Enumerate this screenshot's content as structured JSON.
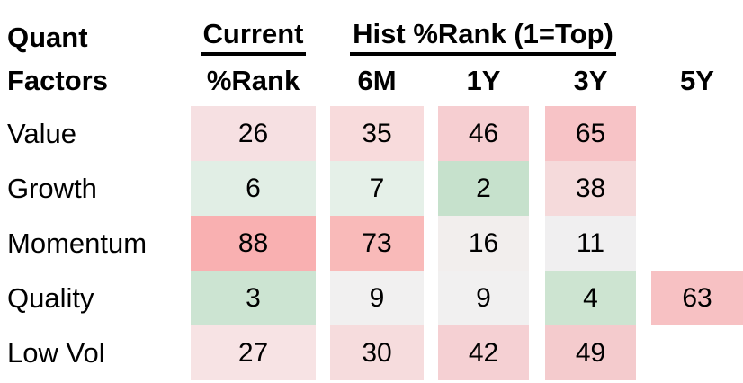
{
  "headers": {
    "corner_line1": "Quant",
    "corner_line2": "Factors",
    "current_group": "Current",
    "hist_group": "Hist %Rank (1=Top)",
    "sub": [
      "%Rank",
      "6M",
      "1Y",
      "3Y",
      "5Y"
    ]
  },
  "chart_data": {
    "type": "heatmap",
    "columns": [
      "Current %Rank",
      "6M",
      "1Y",
      "3Y",
      "5Y"
    ],
    "rows": [
      "Value",
      "Growth",
      "Momentum",
      "Quality",
      "Low Vol"
    ],
    "values": [
      [
        26,
        35,
        46,
        65,
        null
      ],
      [
        6,
        7,
        2,
        38,
        null
      ],
      [
        88,
        73,
        16,
        11,
        null
      ],
      [
        3,
        9,
        9,
        4,
        63
      ],
      [
        27,
        30,
        42,
        49,
        null
      ]
    ],
    "colors": [
      [
        "#f6e0e2",
        "#f8dbdc",
        "#f6ced1",
        "#f7c3c6",
        null
      ],
      [
        "#e1eee5",
        "#e5f0e8",
        "#c6e1cc",
        "#f5dadb",
        null
      ],
      [
        "#f9b0b1",
        "#f9bab9",
        "#f2eeed",
        "#f0eff0",
        null
      ],
      [
        "#cce4d2",
        "#f1f0f0",
        "#f1f0f0",
        "#cde4d1",
        "#f7c1c3"
      ],
      [
        "#f7e3e4",
        "#f6dcdd",
        "#f5d0d3",
        "#f4cbcd",
        null
      ]
    ],
    "scale_note_visible_in_header": "1=Top",
    "layout": {
      "grid": false,
      "legend": "none"
    }
  }
}
